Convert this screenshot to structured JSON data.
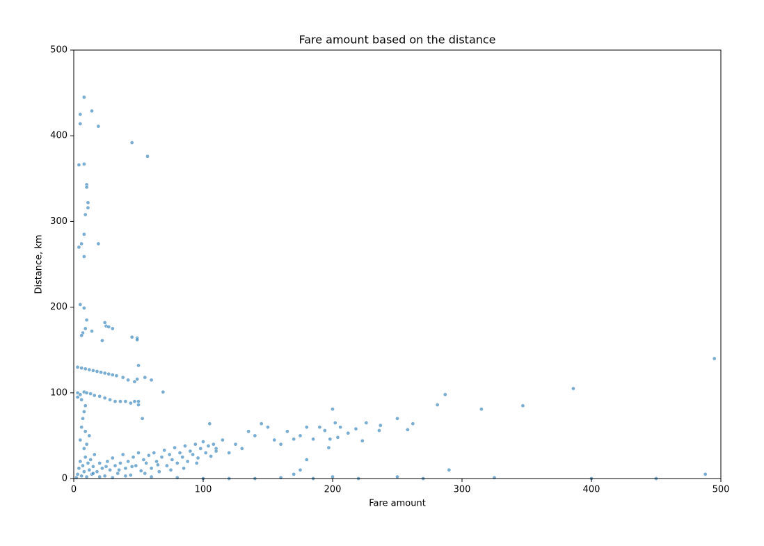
{
  "chart_data": {
    "type": "scatter",
    "title": "Fare amount based on the distance",
    "x_label": "Fare amount",
    "y_label": "Distance, km",
    "color": "#1f77b4",
    "xlim": [
      0,
      500
    ],
    "ylim": [
      0,
      500
    ],
    "xticks": [
      0,
      100,
      200,
      300,
      400,
      500
    ],
    "yticks": [
      0,
      100,
      200,
      300,
      400,
      500
    ],
    "x": [
      5,
      5,
      8,
      14,
      19,
      45,
      57,
      4,
      8,
      10,
      10,
      11,
      11,
      9,
      8,
      4,
      6,
      19,
      8,
      5,
      8,
      10,
      9,
      14,
      7,
      6,
      24,
      25,
      27,
      30,
      22,
      45,
      49,
      49,
      50,
      55,
      60,
      69,
      50,
      50,
      53,
      495,
      386,
      347,
      315,
      287,
      281,
      290,
      488,
      450,
      400,
      325,
      262,
      258,
      250,
      237,
      236,
      226,
      223,
      218,
      212,
      206,
      204,
      202,
      200,
      198,
      197,
      194,
      190,
      185,
      180,
      175,
      170,
      165,
      160,
      155,
      150,
      145,
      140,
      135,
      130,
      125,
      120,
      110,
      105,
      115,
      185,
      200,
      220,
      250,
      270,
      170,
      180,
      175,
      3,
      6,
      9,
      12,
      15,
      18,
      21,
      24,
      27,
      30,
      33,
      38,
      42,
      47,
      49,
      3,
      5,
      8,
      10,
      13,
      16,
      20,
      24,
      28,
      32,
      36,
      40,
      44,
      47,
      3,
      6,
      9,
      8,
      7,
      6,
      9,
      12,
      5,
      10,
      8,
      2,
      3,
      4,
      5,
      6,
      7,
      8,
      9,
      10,
      11,
      12,
      13,
      14,
      15,
      16,
      18,
      20,
      22,
      24,
      26,
      28,
      30,
      32,
      34,
      36,
      38,
      40,
      42,
      44,
      46,
      48,
      50,
      52,
      54,
      56,
      58,
      60,
      62,
      64,
      66,
      68,
      70,
      72,
      74,
      76,
      78,
      80,
      82,
      84,
      86,
      88,
      90,
      92,
      94,
      96,
      98,
      100,
      102,
      104,
      106,
      108,
      110,
      20,
      30,
      40,
      60,
      80,
      100,
      120,
      140,
      160,
      35,
      45,
      55,
      65,
      75,
      85,
      95,
      25,
      15
    ],
    "values": [
      425,
      414,
      445,
      429,
      411,
      392,
      376,
      366,
      367,
      343,
      340,
      322,
      316,
      308,
      285,
      270,
      274,
      274,
      259,
      203,
      199,
      185,
      175,
      172,
      170,
      167,
      182,
      178,
      177,
      175,
      161,
      165,
      164,
      162,
      132,
      118,
      115,
      101,
      90,
      86,
      70,
      140,
      105,
      85,
      81,
      98,
      86,
      10,
      5,
      0,
      0,
      1,
      64,
      57,
      70,
      62,
      56,
      65,
      44,
      58,
      53,
      60,
      48,
      65,
      81,
      46,
      36,
      56,
      60,
      46,
      60,
      50,
      46,
      55,
      40,
      45,
      60,
      64,
      50,
      55,
      35,
      40,
      30,
      35,
      64,
      45,
      0,
      2,
      0,
      2,
      0,
      5,
      22,
      10,
      130,
      129,
      128,
      127,
      126,
      125,
      124,
      123,
      122,
      121,
      120,
      118,
      115,
      113,
      116,
      100,
      98,
      101,
      100,
      99,
      97,
      96,
      94,
      92,
      90,
      90,
      90,
      88,
      90,
      95,
      92,
      85,
      78,
      70,
      60,
      55,
      50,
      45,
      40,
      35,
      1,
      5,
      12,
      20,
      3,
      15,
      8,
      25,
      2,
      18,
      10,
      22,
      5,
      14,
      28,
      8,
      18,
      12,
      3,
      20,
      10,
      24,
      15,
      6,
      18,
      28,
      12,
      20,
      4,
      25,
      15,
      30,
      9,
      22,
      18,
      27,
      12,
      30,
      20,
      8,
      25,
      33,
      15,
      28,
      22,
      36,
      18,
      30,
      25,
      38,
      20,
      32,
      28,
      40,
      24,
      35,
      43,
      30,
      38,
      26,
      40,
      32,
      2,
      1,
      3,
      2,
      1,
      0,
      0,
      0,
      1,
      10,
      14,
      6,
      16,
      10,
      12,
      18,
      14,
      6
    ]
  }
}
